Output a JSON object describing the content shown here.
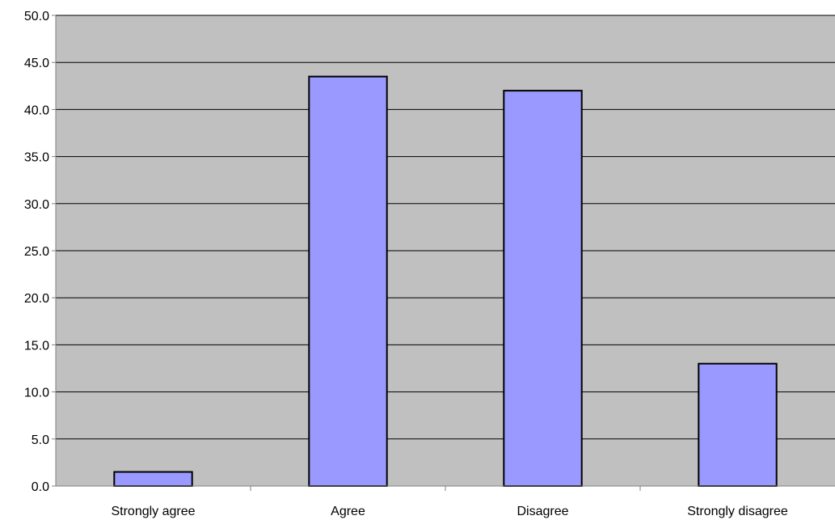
{
  "chart_data": {
    "type": "bar",
    "title": "",
    "xlabel": "",
    "ylabel": "",
    "categories": [
      "Strongly agree",
      "Agree",
      "Disagree",
      "Strongly disagree"
    ],
    "values": [
      1.5,
      43.5,
      42.0,
      13.0
    ],
    "ylim": [
      0,
      50
    ],
    "yticks": [
      0,
      5,
      10,
      15,
      20,
      25,
      30,
      35,
      40,
      45,
      50
    ],
    "ytick_labels": [
      "0.0",
      "5.0",
      "10.0",
      "15.0",
      "20.0",
      "25.0",
      "30.0",
      "35.0",
      "40.0",
      "45.0",
      "50.0"
    ],
    "grid": true,
    "legend": "none",
    "colors": {
      "bar_fill": "#9999ff",
      "bar_stroke": "#000000",
      "plot_background": "#c0c0c0",
      "gridline": "#000000",
      "axis": "#808080"
    }
  }
}
